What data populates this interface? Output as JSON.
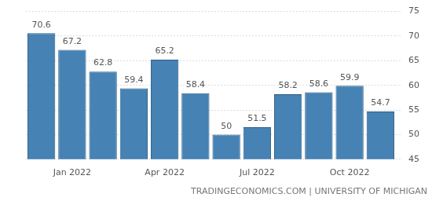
{
  "chart_data": {
    "type": "bar",
    "categories": [
      null,
      "Jan 2022",
      null,
      null,
      "Apr 2022",
      null,
      null,
      "Jul 2022",
      null,
      null,
      "Oct 2022",
      null
    ],
    "values": [
      70.6,
      67.2,
      62.8,
      59.4,
      65.2,
      58.4,
      50,
      51.5,
      58.2,
      58.6,
      59.9,
      54.7
    ],
    "color": "#4682b4",
    "ylim": [
      45,
      75
    ],
    "yticks": [
      45,
      50,
      55,
      60,
      65,
      70,
      75
    ],
    "grid": true,
    "data_labels": true,
    "annotations": [
      "TRADINGECONOMICS.COM | UNIVERSITY OF MICHIGAN"
    ]
  }
}
